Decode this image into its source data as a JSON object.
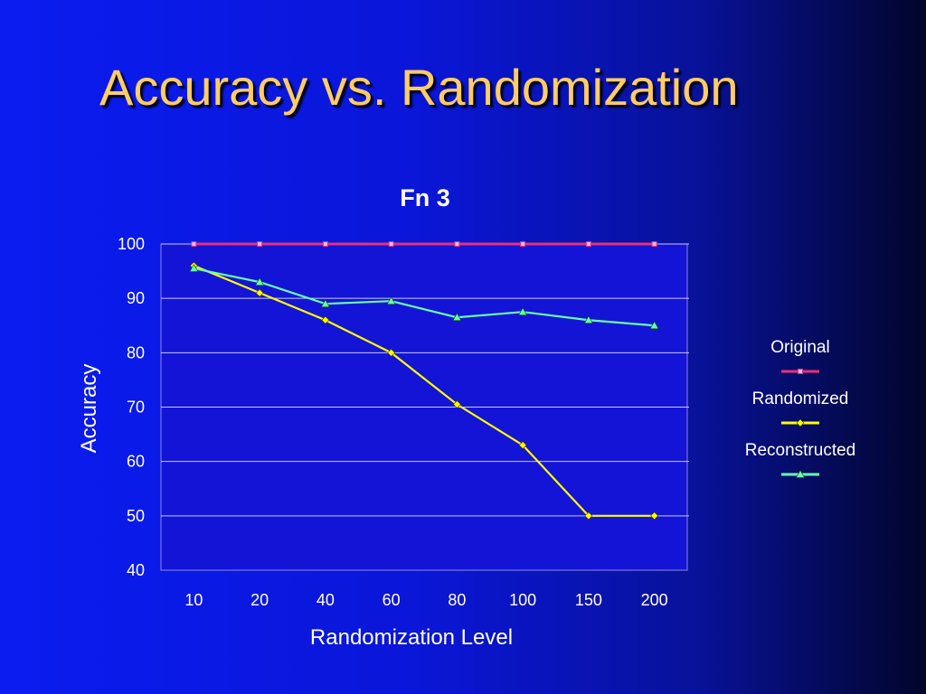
{
  "slide": {
    "title": "Accuracy vs. Randomization"
  },
  "chart_data": {
    "type": "line",
    "title": "Fn 3",
    "xlabel": "Randomization Level",
    "ylabel": "Accuracy",
    "categories": [
      "10",
      "20",
      "40",
      "60",
      "80",
      "100",
      "150",
      "200"
    ],
    "ylim": [
      40,
      100
    ],
    "yticks": [
      "40",
      "50",
      "60",
      "70",
      "80",
      "90",
      "100"
    ],
    "grid": true,
    "legend_position": "right",
    "series": [
      {
        "name": "Original",
        "color": "#e8307a",
        "marker": "square",
        "values": [
          100,
          100,
          100,
          100,
          100,
          100,
          100,
          100
        ]
      },
      {
        "name": "Randomized",
        "color": "#ffff00",
        "marker": "diamond",
        "values": [
          96,
          91,
          86,
          80,
          70.5,
          63,
          50,
          50
        ]
      },
      {
        "name": "Reconstructed",
        "color": "#66ffaa",
        "marker": "triangle",
        "values": [
          95.5,
          93,
          89,
          89.5,
          86.5,
          87.5,
          86,
          85
        ]
      }
    ]
  }
}
